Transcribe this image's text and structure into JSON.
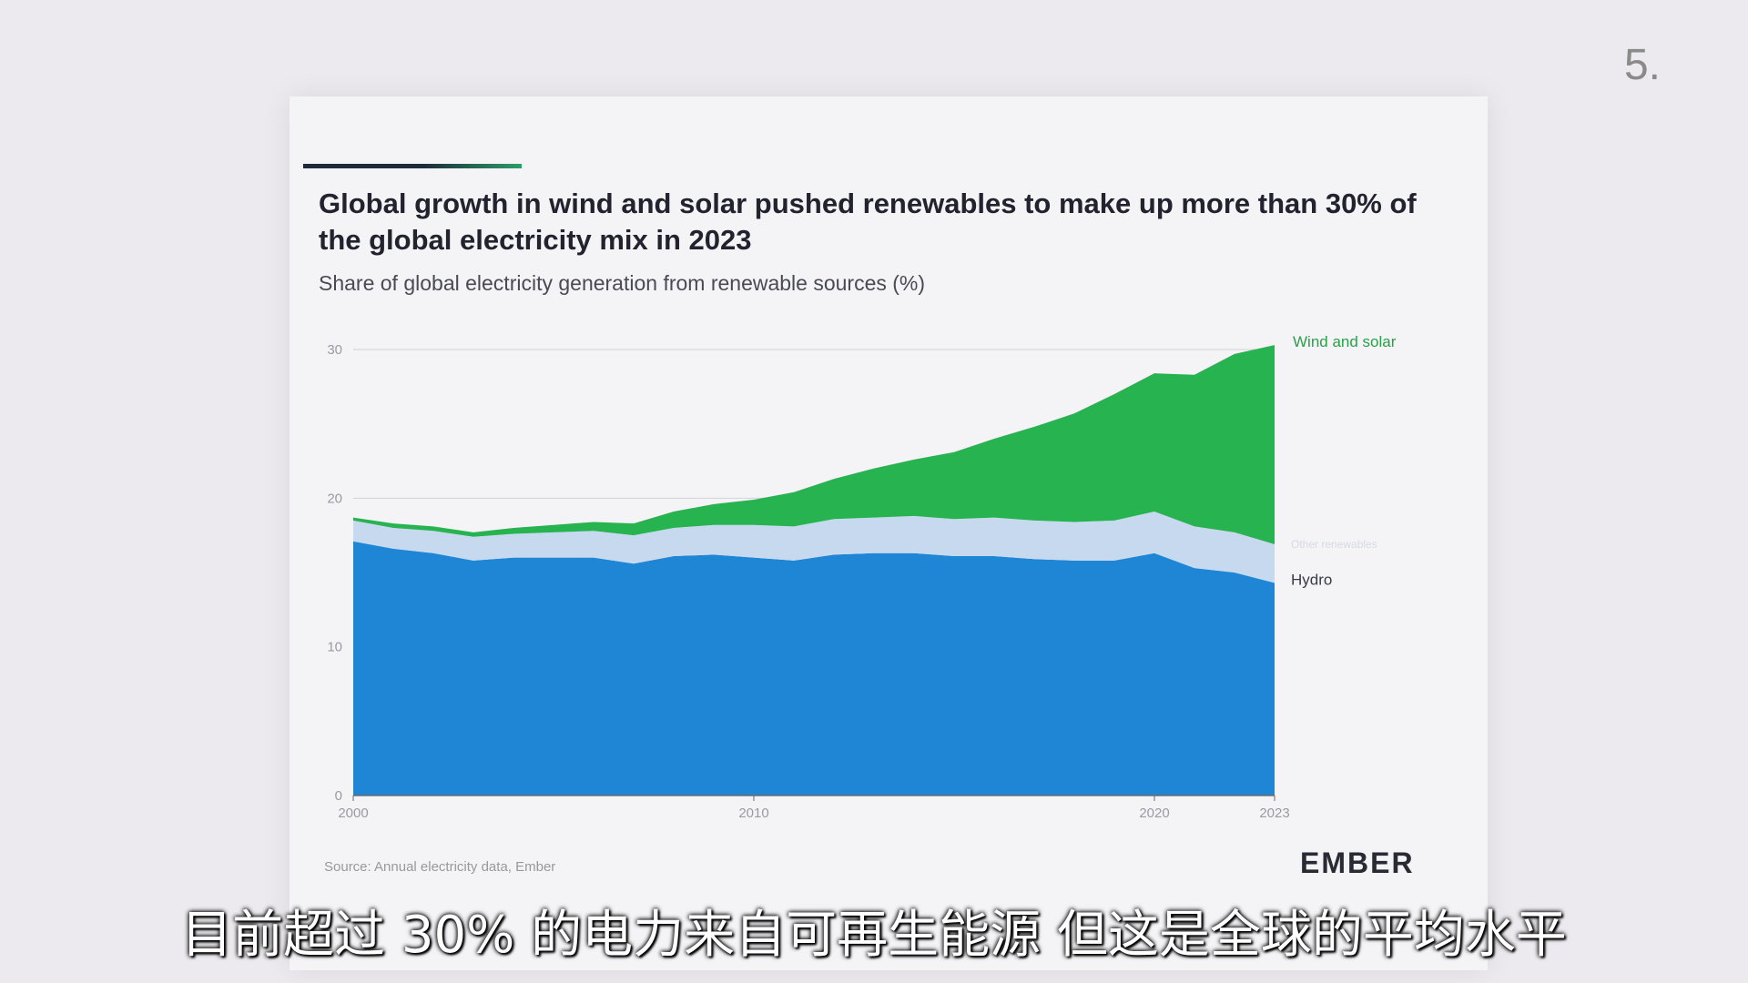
{
  "page_number": "5.",
  "title": "Global growth in wind and solar pushed renewables to make up more than 30% of the global electricity mix in 2023",
  "subtitle": "Share of global electricity generation from renewable sources (%)",
  "source": "Source: Annual electricity data, Ember",
  "logo": "EMBER",
  "caption": "目前超过 30% 的电力来自可再生能源 但这是全球的平均水平",
  "colors": {
    "hydro": "#1f86d6",
    "other": "#c6d9ee",
    "wind_solar": "#27b34f",
    "label_green": "#28a148"
  },
  "chart_data": {
    "type": "area",
    "stacked": true,
    "xlim": [
      2000,
      2023
    ],
    "ylim": [
      0,
      30
    ],
    "x_ticks": [
      "2000",
      "2010",
      "2020",
      "2023"
    ],
    "y_ticks": [
      "0",
      "10",
      "20",
      "30"
    ],
    "grid": true,
    "x": [
      2000,
      2001,
      2002,
      2003,
      2004,
      2005,
      2006,
      2007,
      2008,
      2009,
      2010,
      2011,
      2012,
      2013,
      2014,
      2015,
      2016,
      2017,
      2018,
      2019,
      2020,
      2021,
      2022,
      2023
    ],
    "series": [
      {
        "name": "Hydro",
        "values": [
          17.1,
          16.6,
          16.3,
          15.8,
          16.0,
          16.0,
          16.0,
          15.6,
          16.1,
          16.2,
          16.0,
          15.8,
          16.2,
          16.3,
          16.3,
          16.1,
          16.1,
          15.9,
          15.8,
          15.8,
          16.3,
          15.3,
          15.0,
          14.3
        ]
      },
      {
        "name": "Other renewables",
        "values": [
          1.4,
          1.4,
          1.5,
          1.6,
          1.6,
          1.7,
          1.8,
          1.9,
          1.9,
          2.0,
          2.2,
          2.3,
          2.4,
          2.4,
          2.5,
          2.5,
          2.6,
          2.6,
          2.6,
          2.7,
          2.8,
          2.8,
          2.7,
          2.6
        ]
      },
      {
        "name": "Wind and solar",
        "values": [
          0.2,
          0.3,
          0.3,
          0.3,
          0.4,
          0.5,
          0.6,
          0.8,
          1.1,
          1.4,
          1.7,
          2.3,
          2.7,
          3.3,
          3.8,
          4.5,
          5.3,
          6.3,
          7.3,
          8.5,
          9.3,
          10.2,
          12.0,
          13.4
        ]
      }
    ]
  }
}
